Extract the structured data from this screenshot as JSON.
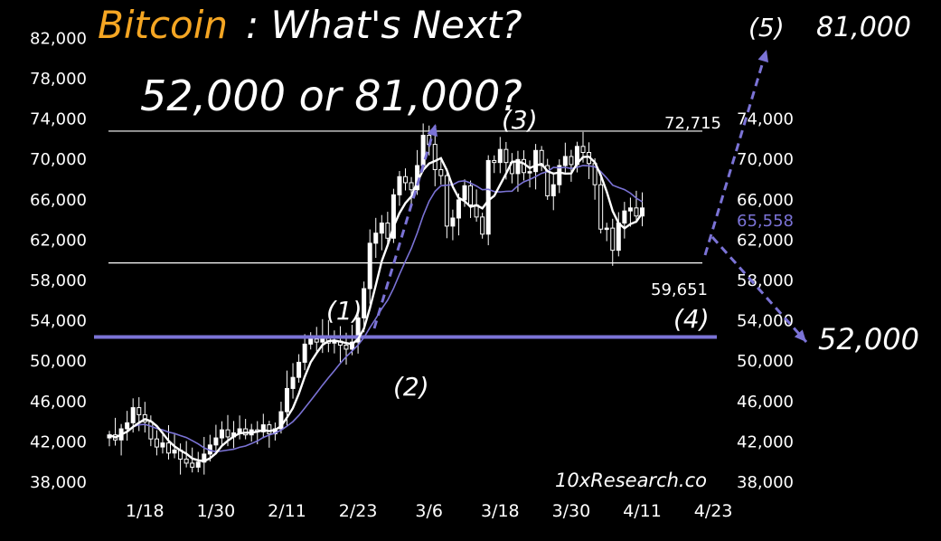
{
  "chart_data": {
    "type": "candlestick",
    "title": {
      "highlight": "Bitcoin",
      "rest": ": What's Next?",
      "highlight_color": "#f5a623"
    },
    "subtitle": "52,000 or 81,000?",
    "watermark": "10xResearch.co",
    "ylim": [
      36000,
      84000
    ],
    "yticks": [
      38000,
      42000,
      46000,
      50000,
      54000,
      58000,
      62000,
      66000,
      70000,
      74000,
      78000,
      82000
    ],
    "ytick_labels": [
      "38,000",
      "42,000",
      "46,000",
      "50,000",
      "54,000",
      "58,000",
      "62,000",
      "66,000",
      "70,000",
      "74,000",
      "78,000",
      "82,000"
    ],
    "ytick_labels_right": [
      "38,000",
      "42,000",
      "46,000",
      "50,000",
      "54,000",
      "58,000",
      "62,000",
      "66,000",
      "70,000",
      "74,000"
    ],
    "x_dates": [
      "2024-01-12",
      "2024-04-23"
    ],
    "xticks": [
      "1/18",
      "1/30",
      "2/11",
      "2/23",
      "3/6",
      "3/18",
      "3/30",
      "4/11",
      "4/23"
    ],
    "xtick_dates": [
      "2024-01-18",
      "2024-01-30",
      "2024-02-11",
      "2024-02-23",
      "2024-03-06",
      "2024-03-18",
      "2024-03-30",
      "2024-04-11",
      "2024-04-23"
    ],
    "colors": {
      "candle": "#ffffff",
      "fast_ma": "#ffffff",
      "slow_ma": "#7b73d6",
      "support": "#7b73d6",
      "range": "#ffffff",
      "arrow": "#7b73d6",
      "ma_value": "#7b73d6"
    },
    "closes": [
      42600,
      42100,
      43200,
      43800,
      45300,
      44600,
      43900,
      42200,
      41400,
      41800,
      40800,
      41100,
      40200,
      39800,
      39400,
      39900,
      40700,
      41600,
      42300,
      43100,
      42400,
      42800,
      43200,
      42600,
      43100,
      42900,
      43600,
      42700,
      43200,
      44900,
      47200,
      48300,
      49800,
      51600,
      52100,
      51800,
      52300,
      51700,
      51900,
      51500,
      51100,
      51800,
      54200,
      57100,
      61600,
      62600,
      63600,
      62100,
      66400,
      68200,
      67600,
      66900,
      69300,
      72300,
      71400,
      68900,
      68300,
      63300,
      64100,
      65900,
      67300,
      65400,
      64200,
      62500,
      69800,
      69600,
      70900,
      69600,
      68500,
      69900,
      68600,
      68700,
      70800,
      69300,
      66300,
      67400,
      69300,
      70200,
      69400,
      71200,
      70600,
      69500,
      67400,
      63000,
      63100,
      60900,
      63600,
      64800,
      65100,
      64300,
      65100
    ],
    "fast_ma_end": 63900,
    "slow_ma_end": 65558,
    "range_high": {
      "value": 72715,
      "label": "72,715"
    },
    "range_low": {
      "value": 59651,
      "label": "59,651"
    },
    "support": {
      "value": 52300
    },
    "current_ma_label": {
      "value": 65558,
      "label": "65,558"
    },
    "wave_labels": [
      "(1)",
      "(2)",
      "(3)",
      "(4)",
      "(5)"
    ],
    "targets": [
      {
        "value": 81000,
        "label": "81,000"
      },
      {
        "value": 52000,
        "label": "52,000"
      }
    ]
  }
}
